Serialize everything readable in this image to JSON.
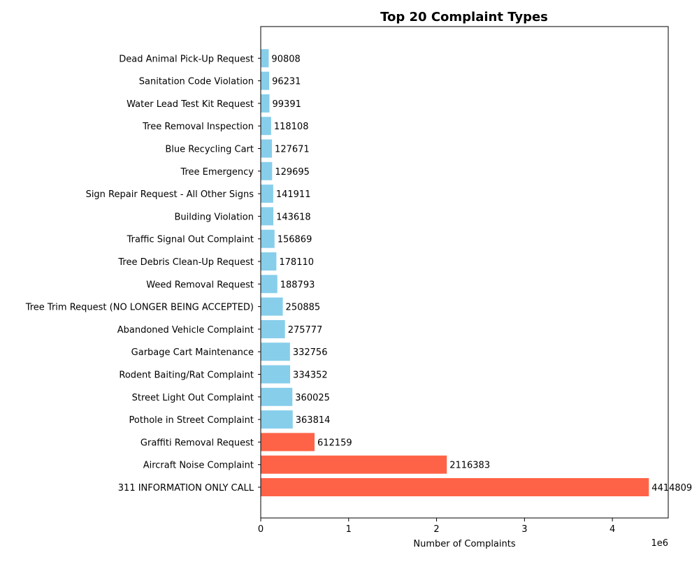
{
  "chart_data": {
    "type": "bar",
    "orientation": "horizontal",
    "title": "Top 20 Complaint Types",
    "xlabel": "Number of Complaints",
    "ylabel": "",
    "x_scale_label": "1e6",
    "xlim": [
      0,
      4635000
    ],
    "x_ticks": [
      0,
      1000000,
      2000000,
      3000000,
      4000000
    ],
    "x_tick_labels": [
      "0",
      "1",
      "2",
      "3",
      "4"
    ],
    "grid": false,
    "legend": "none",
    "colors": {
      "default": "#87CEEB",
      "highlight": "#FF6347"
    },
    "categories": [
      "311 INFORMATION ONLY CALL",
      "Aircraft Noise Complaint",
      "Graffiti Removal Request",
      "Pothole in Street Complaint",
      "Street Light Out Complaint",
      "Rodent Baiting/Rat Complaint",
      "Garbage Cart Maintenance",
      "Abandoned Vehicle Complaint",
      "Tree Trim Request (NO LONGER BEING ACCEPTED)",
      "Weed Removal Request",
      "Tree Debris Clean-Up Request",
      "Traffic Signal Out Complaint",
      "Building Violation",
      "Sign Repair Request - All Other Signs",
      "Tree Emergency",
      "Blue Recycling Cart",
      "Tree Removal Inspection",
      "Water Lead Test Kit Request",
      "Sanitation Code Violation",
      "Dead Animal Pick-Up Request"
    ],
    "values": [
      4414809,
      2116383,
      612159,
      363814,
      360025,
      334352,
      332756,
      275777,
      250885,
      188793,
      178110,
      156869,
      143618,
      141911,
      129695,
      127671,
      118108,
      99391,
      96231,
      90808
    ],
    "highlighted": [
      true,
      true,
      true,
      false,
      false,
      false,
      false,
      false,
      false,
      false,
      false,
      false,
      false,
      false,
      false,
      false,
      false,
      false,
      false,
      false
    ]
  }
}
